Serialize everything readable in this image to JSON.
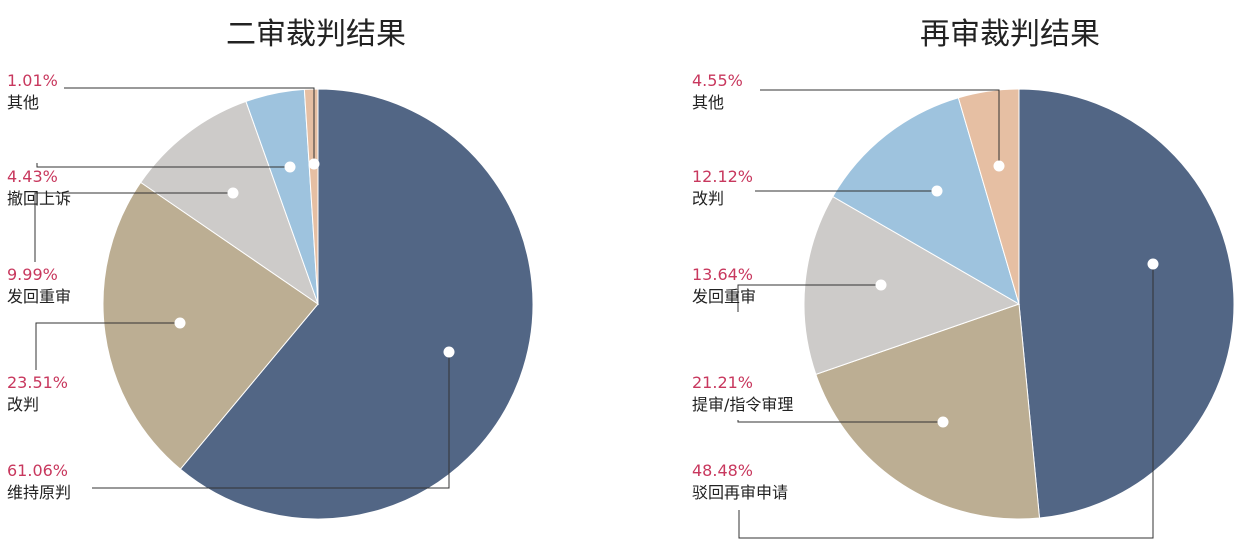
{
  "chart_data": [
    {
      "type": "pie",
      "title": "二审裁判结果",
      "slices": [
        {
          "label": "维持原判",
          "value": 61.06,
          "display": "61.06%",
          "color": "#526685"
        },
        {
          "label": "改判",
          "value": 23.51,
          "display": "23.51%",
          "color": "#bcae93"
        },
        {
          "label": "发回重审",
          "value": 9.99,
          "display": "9.99%",
          "color": "#cdcbc9"
        },
        {
          "label": "撤回上诉",
          "value": 4.43,
          "display": "4.43%",
          "color": "#9ec3de"
        },
        {
          "label": "其他",
          "value": 1.01,
          "display": "1.01%",
          "color": "#e6bfa3"
        }
      ]
    },
    {
      "type": "pie",
      "title": "再审裁判结果",
      "slices": [
        {
          "label": "驳回再审申请",
          "value": 48.48,
          "display": "48.48%",
          "color": "#526685"
        },
        {
          "label": "提审/指令审理",
          "value": 21.21,
          "display": "21.21%",
          "color": "#bcae93"
        },
        {
          "label": "发回重审",
          "value": 13.64,
          "display": "13.64%",
          "color": "#cdcbc9"
        },
        {
          "label": "改判",
          "value": 12.12,
          "display": "12.12%",
          "color": "#9ec3de"
        },
        {
          "label": "其他",
          "value": 4.55,
          "display": "4.55%",
          "color": "#e6bfa3"
        }
      ]
    }
  ]
}
